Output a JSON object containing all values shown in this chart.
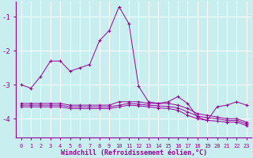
{
  "xlabel": "Windchill (Refroidissement éolien,°C)",
  "ylabel": "",
  "background_color": "#c8eef0",
  "grid_color": "#b0dde0",
  "line_color": "#990099",
  "xlim": [
    -0.5,
    23.5
  ],
  "ylim": [
    -4.55,
    -0.55
  ],
  "yticks": [
    -4,
    -3,
    -2,
    -1
  ],
  "xticks": [
    0,
    1,
    2,
    3,
    4,
    5,
    6,
    7,
    8,
    9,
    10,
    11,
    12,
    13,
    14,
    15,
    16,
    17,
    18,
    19,
    20,
    21,
    22,
    23
  ],
  "series": [
    {
      "x": [
        0,
        1,
        2,
        3,
        4,
        5,
        6,
        7,
        8,
        9,
        10,
        11,
        12,
        13,
        14,
        15,
        16,
        17,
        18,
        19,
        20,
        21,
        22,
        23
      ],
      "y": [
        -3.0,
        -3.1,
        -2.75,
        -2.3,
        -2.3,
        -2.6,
        -2.5,
        -2.4,
        -1.7,
        -1.4,
        -0.7,
        -1.2,
        -3.05,
        -3.5,
        -3.55,
        -3.5,
        -3.35,
        -3.55,
        -3.95,
        -4.05,
        -3.65,
        -3.6,
        -3.5,
        -3.6
      ]
    },
    {
      "x": [
        0,
        1,
        2,
        3,
        4,
        5,
        6,
        7,
        8,
        9,
        10,
        11,
        12,
        13,
        14,
        15,
        16,
        17,
        18,
        19,
        20,
        21,
        22,
        23
      ],
      "y": [
        -3.55,
        -3.55,
        -3.55,
        -3.55,
        -3.55,
        -3.6,
        -3.6,
        -3.6,
        -3.6,
        -3.6,
        -3.5,
        -3.5,
        -3.5,
        -3.55,
        -3.55,
        -3.55,
        -3.6,
        -3.7,
        -3.85,
        -3.9,
        -3.95,
        -4.0,
        -4.0,
        -4.1
      ]
    },
    {
      "x": [
        0,
        1,
        2,
        3,
        4,
        5,
        6,
        7,
        8,
        9,
        10,
        11,
        12,
        13,
        14,
        15,
        16,
        17,
        18,
        19,
        20,
        21,
        22,
        23
      ],
      "y": [
        -3.6,
        -3.6,
        -3.6,
        -3.6,
        -3.6,
        -3.65,
        -3.65,
        -3.65,
        -3.65,
        -3.65,
        -3.6,
        -3.55,
        -3.57,
        -3.6,
        -3.62,
        -3.64,
        -3.68,
        -3.8,
        -3.92,
        -3.97,
        -4.0,
        -4.05,
        -4.05,
        -4.15
      ]
    },
    {
      "x": [
        0,
        1,
        2,
        3,
        4,
        5,
        6,
        7,
        8,
        9,
        10,
        11,
        12,
        13,
        14,
        15,
        16,
        17,
        18,
        19,
        20,
        21,
        22,
        23
      ],
      "y": [
        -3.65,
        -3.65,
        -3.65,
        -3.65,
        -3.65,
        -3.7,
        -3.7,
        -3.7,
        -3.7,
        -3.7,
        -3.65,
        -3.6,
        -3.62,
        -3.65,
        -3.68,
        -3.7,
        -3.75,
        -3.9,
        -4.0,
        -4.05,
        -4.07,
        -4.1,
        -4.1,
        -4.2
      ]
    }
  ]
}
